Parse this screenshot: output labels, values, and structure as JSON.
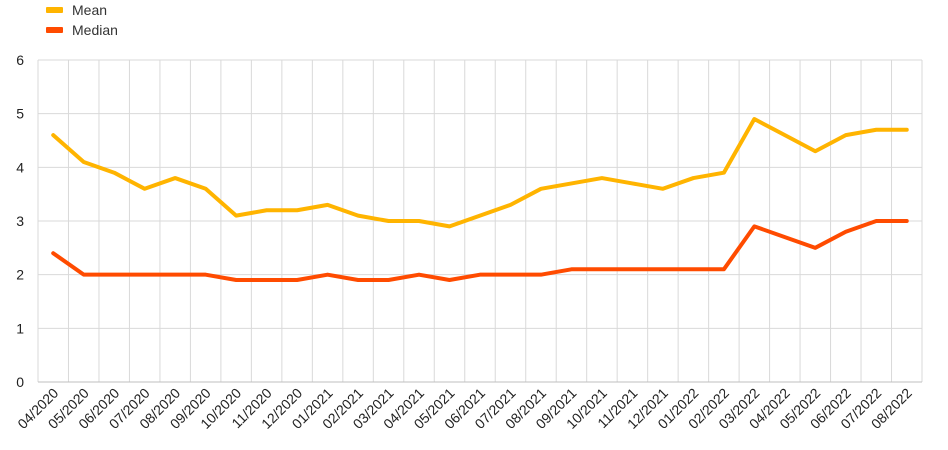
{
  "chart_data": {
    "type": "line",
    "title": "",
    "xlabel": "",
    "ylabel": "",
    "ylim": [
      0,
      6
    ],
    "yticks": [
      0,
      1,
      2,
      3,
      4,
      5,
      6
    ],
    "grid": true,
    "legend_position": "top-left",
    "categories": [
      "04/2020",
      "05/2020",
      "06/2020",
      "07/2020",
      "08/2020",
      "09/2020",
      "10/2020",
      "11/2020",
      "12/2020",
      "01/2021",
      "02/2021",
      "03/2021",
      "04/2021",
      "05/2021",
      "06/2021",
      "07/2021",
      "08/2021",
      "09/2021",
      "10/2021",
      "11/2021",
      "12/2021",
      "01/2022",
      "02/2022",
      "03/2022",
      "04/2022",
      "05/2022",
      "06/2022",
      "07/2022",
      "08/2022"
    ],
    "series": [
      {
        "name": "Mean",
        "color": "#FFB400",
        "values": [
          4.6,
          4.1,
          3.9,
          3.6,
          3.8,
          3.6,
          3.1,
          3.2,
          3.2,
          3.3,
          3.1,
          3.0,
          3.0,
          2.9,
          3.1,
          3.3,
          3.6,
          3.7,
          3.8,
          3.7,
          3.6,
          3.8,
          3.9,
          4.9,
          4.6,
          4.3,
          4.6,
          4.7,
          4.7
        ]
      },
      {
        "name": "Median",
        "color": "#FF4B00",
        "values": [
          2.4,
          2.0,
          2.0,
          2.0,
          2.0,
          2.0,
          1.9,
          1.9,
          1.9,
          2.0,
          1.9,
          1.9,
          2.0,
          1.9,
          2.0,
          2.0,
          2.0,
          2.1,
          2.1,
          2.1,
          2.1,
          2.1,
          2.1,
          2.9,
          2.7,
          2.5,
          2.8,
          3.0,
          3.0
        ]
      }
    ]
  }
}
